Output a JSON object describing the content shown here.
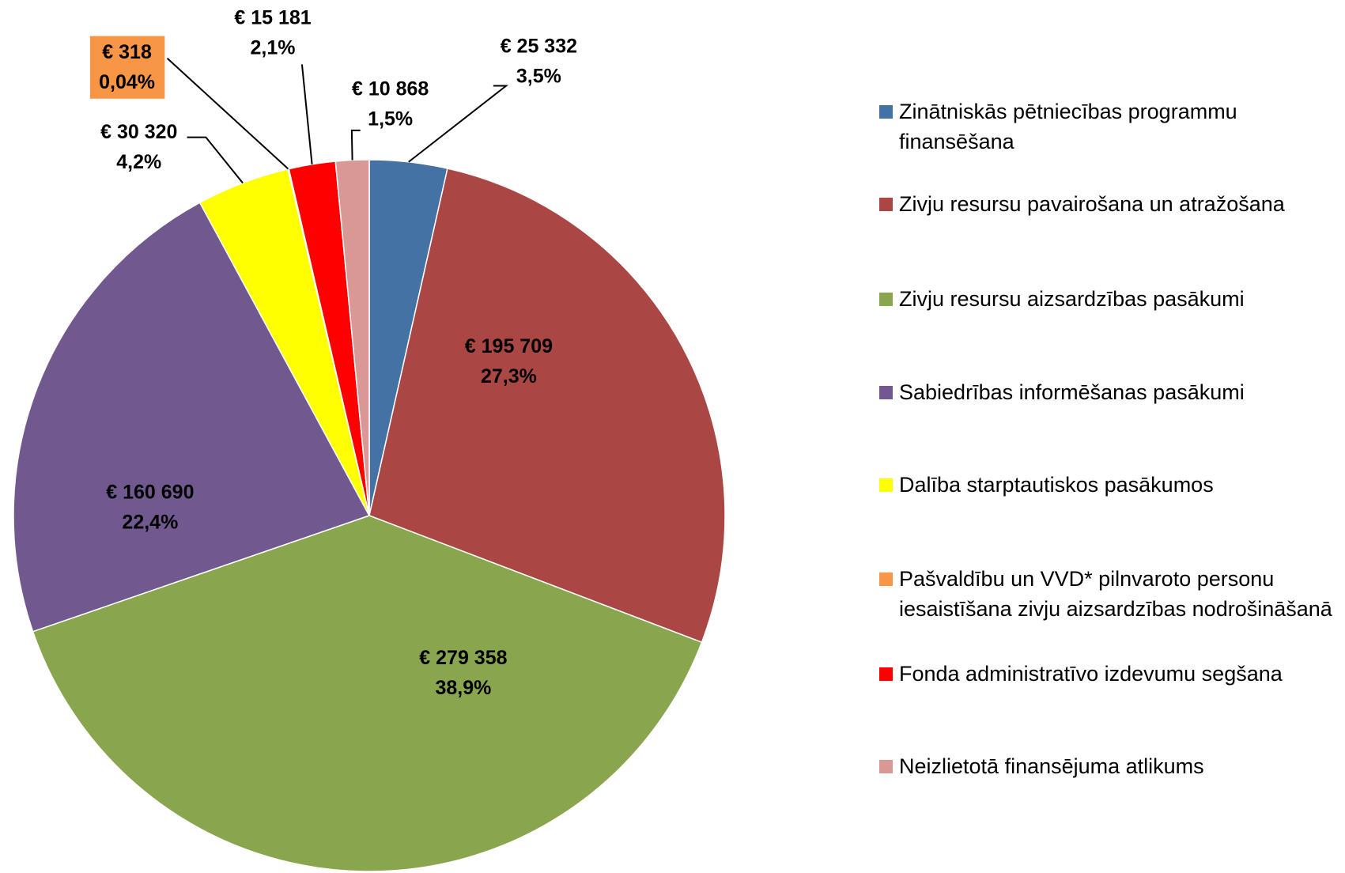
{
  "chart_data": {
    "type": "pie",
    "categories": [
      "Zinātniskās pētniecības programmu finansēšana",
      "Zivju resursu pavairošana un atražošana",
      "Zivju resursu aizsardzības pasākumi",
      "Sabiedrības informēšanas pasākumi",
      "Dalība starptautiskos pasākumos",
      "Pašvaldību un VVD* pilnvaroto personu iesaistīšana zivju aizsardzības nodrošināšanā",
      "Fonda administratīvo izdevumu segšana",
      "Neizlietotā finansējuma atlikums"
    ],
    "values": [
      25332,
      195709,
      279358,
      160690,
      30320,
      318,
      15181,
      10868
    ],
    "value_labels": [
      "€ 25 332",
      "€ 195 709",
      "€ 279 358",
      "€ 160 690",
      "€ 30 320",
      "€  318",
      "€ 15 181",
      "€ 10 868"
    ],
    "percents": [
      3.5,
      27.3,
      38.9,
      22.4,
      4.2,
      0.04,
      2.1,
      1.5
    ],
    "percent_labels": [
      "3,5%",
      "27,3%",
      "38,9%",
      "22,4%",
      "4,2%",
      "0,04%",
      "2,1%",
      "1,5%"
    ],
    "colors": [
      "#4472a4",
      "#aa4745",
      "#89a54e",
      "#71598f",
      "#ffff00",
      "#f79646",
      "#ff0000",
      "#d99795"
    ]
  }
}
